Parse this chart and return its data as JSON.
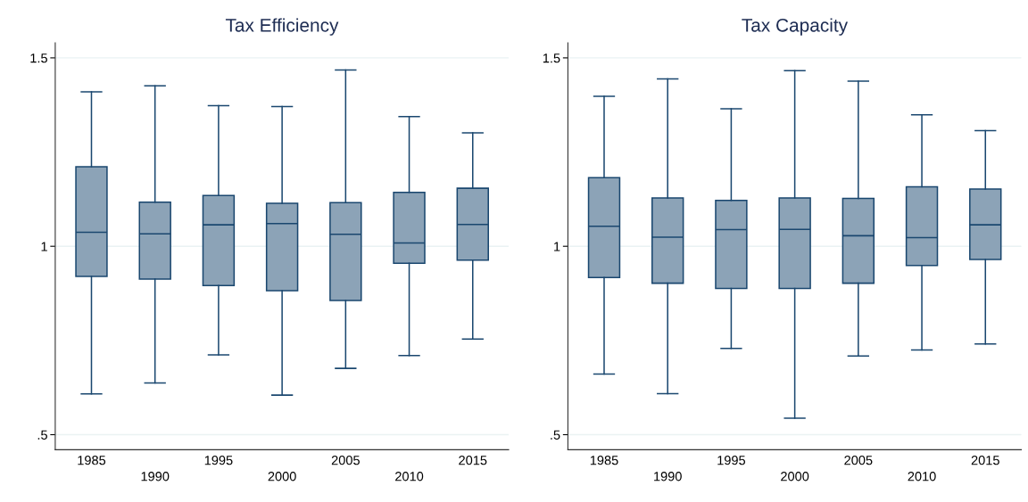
{
  "chart_data": [
    {
      "type": "box",
      "title": "Tax Efficiency",
      "categories": [
        "1985",
        "1990",
        "1995",
        "2000",
        "2005",
        "2010",
        "2015"
      ],
      "series": [
        {
          "color": "#1a476f",
          "boxes": [
            {
              "low": 0.608,
              "q1": 0.92,
              "median": 1.037,
              "q3": 1.211,
              "high": 1.41
            },
            {
              "low": 0.637,
              "q1": 0.913,
              "median": 1.033,
              "q3": 1.117,
              "high": 1.426
            },
            {
              "low": 0.712,
              "q1": 0.896,
              "median": 1.057,
              "q3": 1.135,
              "high": 1.373
            },
            {
              "low": 0.605,
              "q1": 0.882,
              "median": 1.06,
              "q3": 1.114,
              "high": 1.371
            },
            {
              "low": 0.676,
              "q1": 0.856,
              "median": 1.032,
              "q3": 1.116,
              "high": 1.468
            },
            {
              "low": 0.71,
              "q1": 0.955,
              "median": 1.009,
              "q3": 1.143,
              "high": 1.344
            },
            {
              "low": 0.754,
              "q1": 0.963,
              "median": 1.058,
              "q3": 1.154,
              "high": 1.301
            }
          ]
        }
      ],
      "ylim": [
        0.46,
        1.54
      ],
      "yticks": [
        {
          "value": 0.5,
          "label": ".5"
        },
        1,
        1.5
      ],
      "grid": "y"
    },
    {
      "type": "box",
      "title": "Tax Capacity",
      "categories": [
        "1985",
        "1990",
        "1995",
        "2000",
        "2005",
        "2010",
        "2015"
      ],
      "series": [
        {
          "color": "#1a476f",
          "boxes": [
            {
              "low": 0.661,
              "q1": 0.917,
              "median": 1.053,
              "q3": 1.182,
              "high": 1.398
            },
            {
              "low": 0.609,
              "q1": 0.902,
              "median": 1.024,
              "q3": 1.128,
              "high": 1.444
            },
            {
              "low": 0.729,
              "q1": 0.888,
              "median": 1.044,
              "q3": 1.122,
              "high": 1.365
            },
            {
              "low": 0.544,
              "q1": 0.888,
              "median": 1.045,
              "q3": 1.128,
              "high": 1.466
            },
            {
              "low": 0.709,
              "q1": 0.902,
              "median": 1.028,
              "q3": 1.127,
              "high": 1.438
            },
            {
              "low": 0.725,
              "q1": 0.949,
              "median": 1.023,
              "q3": 1.158,
              "high": 1.349
            },
            {
              "low": 0.741,
              "q1": 0.965,
              "median": 1.057,
              "q3": 1.152,
              "high": 1.307
            }
          ]
        }
      ],
      "ylim": [
        0.46,
        1.54
      ],
      "yticks": [
        {
          "value": 0.5,
          "label": ".5"
        },
        1,
        1.5
      ],
      "grid": "y"
    }
  ]
}
